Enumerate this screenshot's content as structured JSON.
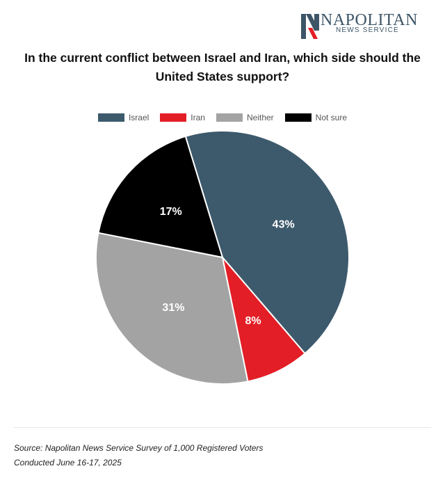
{
  "brand": {
    "name": "NAPOLITAN",
    "subtitle": "NEWS SERVICE",
    "colors": {
      "slate": "#3d5567",
      "red": "#e31e26"
    }
  },
  "title": "In the current conflict between Israel and Iran, which side should the United States support?",
  "chart_data": {
    "type": "pie",
    "title": "In the current conflict between Israel and Iran, which side should the United States support?",
    "legend_position": "top",
    "slices": [
      {
        "label": "Israel",
        "value": 43,
        "display": "43%",
        "color": "#3d5a6c"
      },
      {
        "label": "Iran",
        "value": 8,
        "display": "8%",
        "color": "#e31e26"
      },
      {
        "label": "Neither",
        "value": 31,
        "display": "31%",
        "color": "#a3a3a3"
      },
      {
        "label": "Not sure",
        "value": 17,
        "display": "17%",
        "color": "#000000"
      }
    ]
  },
  "footer": {
    "line1": "Source: Napolitan News Service Survey of 1,000 Registered Voters",
    "line2": "Conducted June 16-17, 2025"
  }
}
